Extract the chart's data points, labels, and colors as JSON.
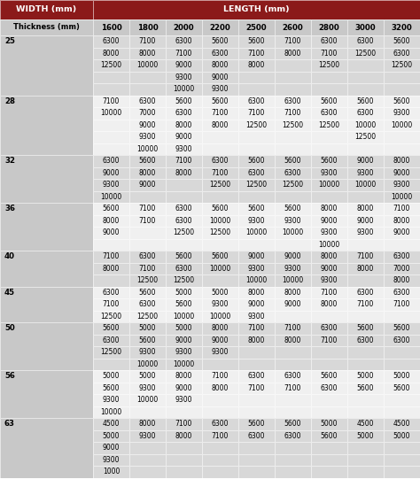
{
  "title_left": "WIDTH (mm)",
  "title_right": "LENGTH (mm)",
  "col_headers": [
    "Thickness (mm)",
    "1600",
    "1800",
    "2000",
    "2200",
    "2500",
    "2600",
    "2800",
    "3000",
    "3200"
  ],
  "header_bg": "#8B1A1A",
  "header_text": "#ffffff",
  "subheader_bg": "#c8c8c8",
  "subheader_text": "#000000",
  "row_bg_A": "#d8d8d8",
  "row_bg_B": "#f0f0f0",
  "thickness_col_bg": "#c8c8c8",
  "rows": [
    {
      "thickness": "25",
      "data": [
        [
          "6300",
          "7100",
          "6300",
          "5600",
          "5600",
          "7100",
          "6300",
          "6300",
          "5600"
        ],
        [
          "8000",
          "8000",
          "7100",
          "6300",
          "7100",
          "8000",
          "7100",
          "12500",
          "6300"
        ],
        [
          "12500",
          "10000",
          "9000",
          "8000",
          "8000",
          "",
          "12500",
          "",
          "12500"
        ],
        [
          "",
          "",
          "9300",
          "9000",
          "",
          "",
          "",
          "",
          ""
        ],
        [
          "",
          "",
          "10000",
          "9300",
          "",
          "",
          "",
          "",
          ""
        ]
      ]
    },
    {
      "thickness": "28",
      "data": [
        [
          "7100",
          "6300",
          "5600",
          "5600",
          "6300",
          "6300",
          "5600",
          "5600",
          "5600"
        ],
        [
          "10000",
          "7000",
          "6300",
          "7100",
          "7100",
          "7100",
          "6300",
          "6300",
          "9300"
        ],
        [
          "",
          "9000",
          "8000",
          "8000",
          "12500",
          "12500",
          "12500",
          "10000",
          "10000"
        ],
        [
          "",
          "9300",
          "9000",
          "",
          "",
          "",
          "",
          "12500",
          ""
        ],
        [
          "",
          "10000",
          "9300",
          "",
          "",
          "",
          "",
          "",
          ""
        ]
      ]
    },
    {
      "thickness": "32",
      "data": [
        [
          "6300",
          "5600",
          "7100",
          "6300",
          "5600",
          "5600",
          "5600",
          "9000",
          "8000"
        ],
        [
          "9000",
          "8000",
          "8000",
          "7100",
          "6300",
          "6300",
          "9300",
          "9300",
          "9000"
        ],
        [
          "9300",
          "9000",
          "",
          "12500",
          "12500",
          "12500",
          "10000",
          "10000",
          "9300"
        ],
        [
          "10000",
          "",
          "",
          "",
          "",
          "",
          "",
          "",
          "10000"
        ]
      ]
    },
    {
      "thickness": "36",
      "data": [
        [
          "5600",
          "7100",
          "6300",
          "5600",
          "5600",
          "5600",
          "8000",
          "8000",
          "7100"
        ],
        [
          "8000",
          "7100",
          "6300",
          "10000",
          "9300",
          "9300",
          "9000",
          "9000",
          "8000"
        ],
        [
          "9000",
          "",
          "12500",
          "12500",
          "10000",
          "10000",
          "9300",
          "9300",
          "9000"
        ],
        [
          "",
          "",
          "",
          "",
          "",
          "",
          "10000",
          "",
          ""
        ]
      ]
    },
    {
      "thickness": "40",
      "data": [
        [
          "7100",
          "6300",
          "5600",
          "5600",
          "9000",
          "9000",
          "8000",
          "7100",
          "6300"
        ],
        [
          "8000",
          "7100",
          "6300",
          "10000",
          "9300",
          "9300",
          "9000",
          "8000",
          "7000"
        ],
        [
          "",
          "12500",
          "12500",
          "",
          "10000",
          "10000",
          "9300",
          "",
          "8000"
        ]
      ]
    },
    {
      "thickness": "45",
      "data": [
        [
          "6300",
          "5600",
          "5000",
          "5000",
          "8000",
          "8000",
          "7100",
          "6300",
          "6300"
        ],
        [
          "7100",
          "6300",
          "5600",
          "9300",
          "9000",
          "9000",
          "8000",
          "7100",
          "7100"
        ],
        [
          "12500",
          "12500",
          "10000",
          "10000",
          "9300",
          "",
          "",
          "",
          ""
        ]
      ]
    },
    {
      "thickness": "50",
      "data": [
        [
          "5600",
          "5000",
          "5000",
          "8000",
          "7100",
          "7100",
          "6300",
          "5600",
          "5600"
        ],
        [
          "6300",
          "5600",
          "9000",
          "9000",
          "8000",
          "8000",
          "7100",
          "6300",
          "6300"
        ],
        [
          "12500",
          "9300",
          "9300",
          "9300",
          "",
          "",
          "",
          "",
          ""
        ],
        [
          "",
          "10000",
          "10000",
          "",
          "",
          "",
          "",
          "",
          ""
        ]
      ]
    },
    {
      "thickness": "56",
      "data": [
        [
          "5000",
          "5000",
          "8000",
          "7100",
          "6300",
          "6300",
          "5600",
          "5000",
          "5000"
        ],
        [
          "5600",
          "9300",
          "9000",
          "8000",
          "7100",
          "7100",
          "6300",
          "5600",
          "5600"
        ],
        [
          "9300",
          "10000",
          "9300",
          "",
          "",
          "",
          "",
          "",
          ""
        ],
        [
          "10000",
          "",
          "",
          "",
          "",
          "",
          "",
          "",
          ""
        ]
      ]
    },
    {
      "thickness": "63",
      "data": [
        [
          "4500",
          "8000",
          "7100",
          "6300",
          "5600",
          "5600",
          "5000",
          "4500",
          "4500"
        ],
        [
          "5000",
          "9300",
          "8000",
          "7100",
          "6300",
          "6300",
          "5600",
          "5000",
          "5000"
        ],
        [
          "9000",
          "",
          "",
          "",
          "",
          "",
          "",
          "",
          ""
        ],
        [
          "9300",
          "",
          "",
          "",
          "",
          "",
          "",
          "",
          ""
        ],
        [
          "1000",
          "",
          "",
          "",
          "",
          "",
          "",
          "",
          ""
        ]
      ]
    }
  ],
  "figsize": [
    4.74,
    5.5
  ],
  "dpi": 100
}
